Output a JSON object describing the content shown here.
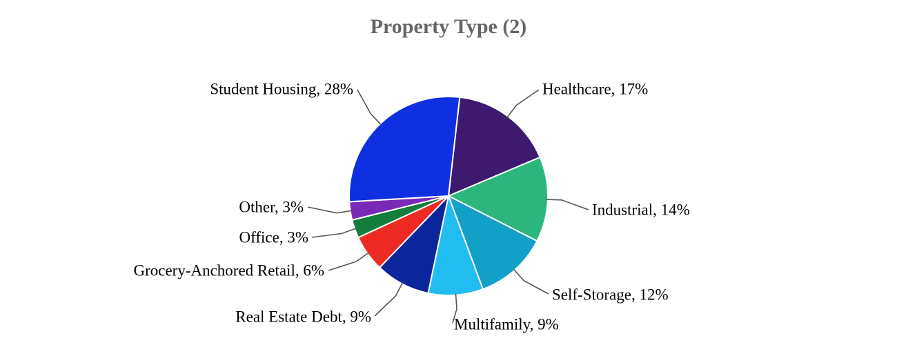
{
  "chart_data": {
    "type": "pie",
    "title": "Property Type (2)",
    "legend": "none",
    "slices": [
      {
        "label": "Healthcare, 17%",
        "name": "Healthcare",
        "value": 17,
        "color": "#3d1a6e"
      },
      {
        "label": "Industrial, 14%",
        "name": "Industrial",
        "value": 14,
        "color": "#2cb67d"
      },
      {
        "label": "Self-Storage, 12%",
        "name": "Self-Storage",
        "value": 12,
        "color": "#13a0c8"
      },
      {
        "label": "Multifamily, 9%",
        "name": "Multifamily",
        "value": 9,
        "color": "#22bdf0"
      },
      {
        "label": "Real Estate Debt, 9%",
        "name": "Real Estate Debt",
        "value": 9,
        "color": "#0b259a"
      },
      {
        "label": "Grocery-Anchored Retail, 6%",
        "name": "Grocery-Anchored Retail",
        "value": 6,
        "color": "#ee2a24"
      },
      {
        "label": "Office, 3%",
        "name": "Office",
        "value": 3,
        "color": "#137d3c"
      },
      {
        "label": "Other, 3%",
        "name": "Other",
        "value": 3,
        "color": "#7a2ab6"
      },
      {
        "label": "Student Housing, 28%",
        "name": "Student Housing",
        "value": 28,
        "color": "#0f30e0"
      }
    ]
  }
}
